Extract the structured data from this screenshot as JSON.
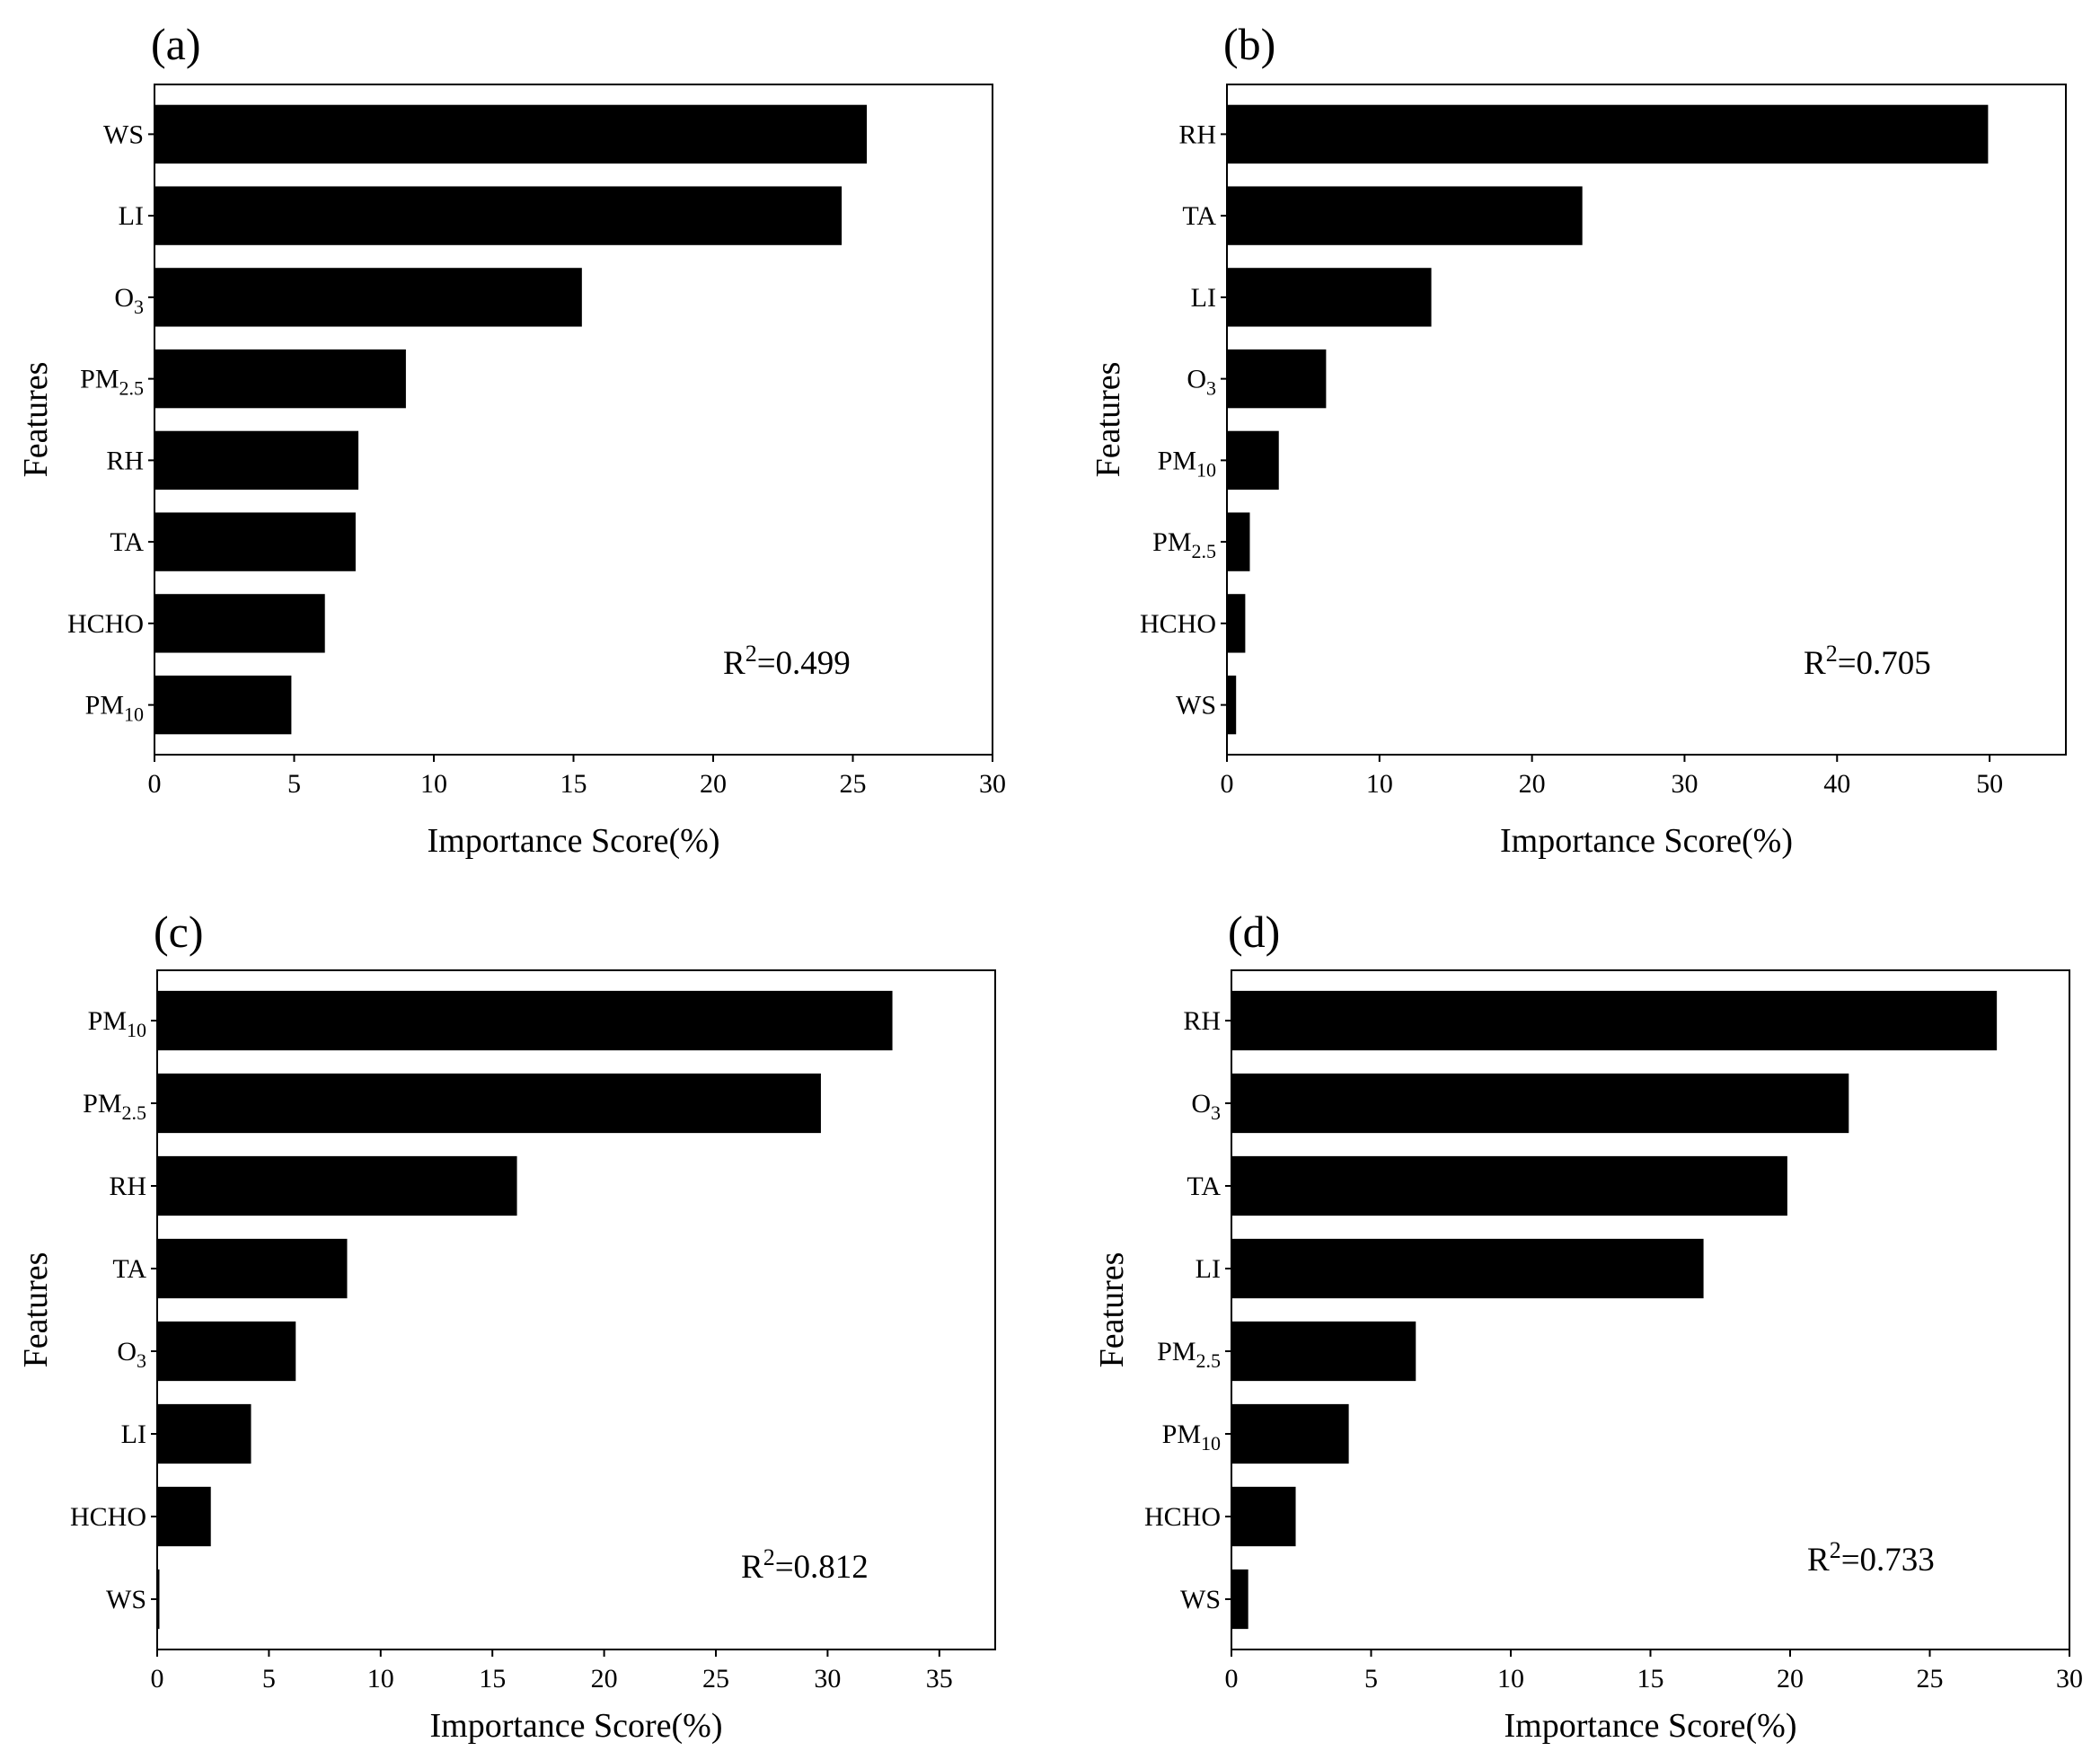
{
  "chart_data": [
    {
      "type": "bar",
      "orientation": "horizontal",
      "panel": "(a)",
      "xlabel": "Importance Score(%)",
      "ylabel": "Features",
      "xlim": [
        0,
        30
      ],
      "xticks": [
        "0",
        "5",
        "10",
        "15",
        "20",
        "25",
        "30"
      ],
      "categories": [
        {
          "base": "WS",
          "sub": "",
          "sup": ""
        },
        {
          "base": "LI",
          "sub": "",
          "sup": ""
        },
        {
          "base": "O",
          "sub": "3",
          "sup": ""
        },
        {
          "base": "PM",
          "sub": "2.5",
          "sup": ""
        },
        {
          "base": "RH",
          "sub": "",
          "sup": ""
        },
        {
          "base": "TA",
          "sub": "",
          "sup": ""
        },
        {
          "base": "HCHO",
          "sub": "",
          "sup": ""
        },
        {
          "base": "PM",
          "sub": "10",
          "sup": ""
        }
      ],
      "values": [
        25.5,
        24.6,
        15.3,
        9.0,
        7.3,
        7.2,
        6.1,
        4.9
      ],
      "annotation": {
        "prefix": "R",
        "sup": "2",
        "suffix": "=0.499"
      }
    },
    {
      "type": "bar",
      "orientation": "horizontal",
      "panel": "(b)",
      "xlabel": "Importance Score(%)",
      "ylabel": "Features",
      "xlim": [
        0,
        55
      ],
      "xticks": [
        "0",
        "10",
        "20",
        "30",
        "40",
        "50"
      ],
      "categories": [
        {
          "base": "RH",
          "sub": "",
          "sup": ""
        },
        {
          "base": "TA",
          "sub": "",
          "sup": ""
        },
        {
          "base": "LI",
          "sub": "",
          "sup": ""
        },
        {
          "base": "O",
          "sub": "3",
          "sup": ""
        },
        {
          "base": "PM",
          "sub": "10",
          "sup": ""
        },
        {
          "base": "PM",
          "sub": "2.5",
          "sup": ""
        },
        {
          "base": "HCHO",
          "sub": "",
          "sup": ""
        },
        {
          "base": "WS",
          "sub": "",
          "sup": ""
        }
      ],
      "values": [
        49.9,
        23.3,
        13.4,
        6.5,
        3.4,
        1.5,
        1.2,
        0.6
      ],
      "annotation": {
        "prefix": "R",
        "sup": "2",
        "suffix": "=0.705"
      }
    },
    {
      "type": "bar",
      "orientation": "horizontal",
      "panel": "(c)",
      "xlabel": "Importance Score(%)",
      "ylabel": "Features",
      "xlim": [
        0,
        37.5
      ],
      "xticks": [
        "0",
        "5",
        "10",
        "15",
        "20",
        "25",
        "30",
        "35"
      ],
      "categories": [
        {
          "base": "PM",
          "sub": "10",
          "sup": ""
        },
        {
          "base": "PM",
          "sub": "2.5",
          "sup": ""
        },
        {
          "base": "RH",
          "sub": "",
          "sup": ""
        },
        {
          "base": "TA",
          "sub": "",
          "sup": ""
        },
        {
          "base": "O",
          "sub": "3",
          "sup": ""
        },
        {
          "base": "LI",
          "sub": "",
          "sup": ""
        },
        {
          "base": "HCHO",
          "sub": "",
          "sup": ""
        },
        {
          "base": "WS",
          "sub": "",
          "sup": ""
        }
      ],
      "values": [
        32.9,
        29.7,
        16.1,
        8.5,
        6.2,
        4.2,
        2.4,
        0.1
      ],
      "annotation": {
        "prefix": "R",
        "sup": "2",
        "suffix": "=0.812"
      }
    },
    {
      "type": "bar",
      "orientation": "horizontal",
      "panel": "(d)",
      "xlabel": "Importance Score(%)",
      "ylabel": "Features",
      "xlim": [
        0,
        30
      ],
      "xticks": [
        "0",
        "5",
        "10",
        "15",
        "20",
        "25",
        "30"
      ],
      "categories": [
        {
          "base": "RH",
          "sub": "",
          "sup": ""
        },
        {
          "base": "O",
          "sub": "3",
          "sup": ""
        },
        {
          "base": "TA",
          "sub": "",
          "sup": ""
        },
        {
          "base": "LI",
          "sub": "",
          "sup": ""
        },
        {
          "base": "PM",
          "sub": "2.5",
          "sup": ""
        },
        {
          "base": "PM",
          "sub": "10",
          "sup": ""
        },
        {
          "base": "HCHO",
          "sub": "",
          "sup": ""
        },
        {
          "base": "WS",
          "sub": "",
          "sup": ""
        }
      ],
      "values": [
        27.4,
        22.1,
        19.9,
        16.9,
        6.6,
        4.2,
        2.3,
        0.6
      ],
      "annotation": {
        "prefix": "R",
        "sup": "2",
        "suffix": "=0.733"
      }
    }
  ],
  "colors": {
    "bar": "#000000",
    "axis": "#000000",
    "background": "#ffffff"
  }
}
